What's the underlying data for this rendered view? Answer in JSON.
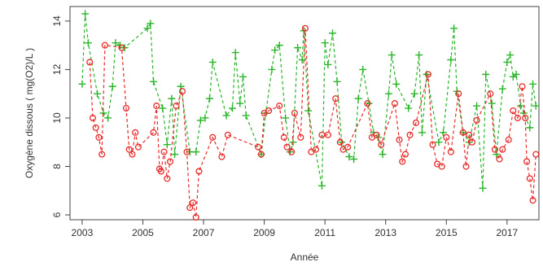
{
  "chart_data": {
    "type": "scatter",
    "title": "",
    "xlabel": "Année",
    "ylabel": "Oxygène dissous ( mg(O2)/L )",
    "xlim": [
      2002.6,
      2018.05
    ],
    "ylim": [
      5.8,
      14.6
    ],
    "x_ticks": [
      2003,
      2005,
      2007,
      2009,
      2011,
      2013,
      2015,
      2017
    ],
    "y_ticks": [
      6,
      8,
      10,
      12,
      14
    ],
    "grid": false,
    "legend": "none",
    "series": [
      {
        "color": "#2ab52a",
        "marker": "plus",
        "line": "dashed",
        "points": [
          [
            2003.0,
            11.4
          ],
          [
            2003.1,
            14.3
          ],
          [
            2003.2,
            13.1
          ],
          [
            2003.5,
            11.0
          ],
          [
            2003.7,
            10.2
          ],
          [
            2003.85,
            10.0
          ],
          [
            2004.0,
            11.3
          ],
          [
            2004.1,
            13.1
          ],
          [
            2004.25,
            13.0
          ],
          [
            2004.4,
            12.9
          ],
          [
            2005.15,
            13.7
          ],
          [
            2005.25,
            13.9
          ],
          [
            2005.35,
            11.5
          ],
          [
            2005.65,
            10.4
          ],
          [
            2005.8,
            8.9
          ],
          [
            2005.95,
            10.8
          ],
          [
            2006.05,
            8.5
          ],
          [
            2006.25,
            11.3
          ],
          [
            2006.55,
            8.6
          ],
          [
            2006.75,
            8.6
          ],
          [
            2006.9,
            9.9
          ],
          [
            2007.05,
            10.0
          ],
          [
            2007.2,
            10.8
          ],
          [
            2007.3,
            12.3
          ],
          [
            2007.75,
            10.1
          ],
          [
            2007.95,
            10.4
          ],
          [
            2008.05,
            12.7
          ],
          [
            2008.2,
            10.6
          ],
          [
            2008.3,
            11.7
          ],
          [
            2008.4,
            10.1
          ],
          [
            2008.9,
            8.5
          ],
          [
            2009.05,
            10.2
          ],
          [
            2009.25,
            12.0
          ],
          [
            2009.35,
            12.8
          ],
          [
            2009.5,
            13.0
          ],
          [
            2009.7,
            10.0
          ],
          [
            2009.85,
            8.6
          ],
          [
            2009.95,
            9.0
          ],
          [
            2010.1,
            12.9
          ],
          [
            2010.25,
            12.4
          ],
          [
            2010.3,
            13.6
          ],
          [
            2010.45,
            10.3
          ],
          [
            2010.9,
            7.2
          ],
          [
            2011.0,
            13.1
          ],
          [
            2011.1,
            12.2
          ],
          [
            2011.25,
            13.5
          ],
          [
            2011.4,
            11.5
          ],
          [
            2011.55,
            9.0
          ],
          [
            2011.8,
            8.4
          ],
          [
            2011.95,
            8.3
          ],
          [
            2012.1,
            10.8
          ],
          [
            2012.25,
            12.0
          ],
          [
            2012.45,
            10.6
          ],
          [
            2012.6,
            9.4
          ],
          [
            2012.75,
            9.2
          ],
          [
            2012.9,
            8.5
          ],
          [
            2013.1,
            11.0
          ],
          [
            2013.2,
            12.6
          ],
          [
            2013.35,
            11.4
          ],
          [
            2013.75,
            10.4
          ],
          [
            2013.95,
            11.0
          ],
          [
            2014.1,
            12.6
          ],
          [
            2014.2,
            9.4
          ],
          [
            2014.35,
            11.8
          ],
          [
            2014.75,
            9.0
          ],
          [
            2014.9,
            9.4
          ],
          [
            2015.15,
            12.4
          ],
          [
            2015.25,
            13.7
          ],
          [
            2015.35,
            11.1
          ],
          [
            2015.55,
            9.4
          ],
          [
            2015.75,
            9.0
          ],
          [
            2016.0,
            10.5
          ],
          [
            2016.2,
            7.1
          ],
          [
            2016.3,
            11.8
          ],
          [
            2016.5,
            10.6
          ],
          [
            2016.65,
            8.5
          ],
          [
            2016.85,
            11.2
          ],
          [
            2017.0,
            12.3
          ],
          [
            2017.1,
            12.6
          ],
          [
            2017.2,
            11.7
          ],
          [
            2017.3,
            11.8
          ],
          [
            2017.45,
            10.5
          ],
          [
            2017.55,
            10.2
          ],
          [
            2017.75,
            9.6
          ],
          [
            2017.85,
            11.4
          ],
          [
            2017.95,
            10.5
          ]
        ]
      },
      {
        "color": "#e82a2a",
        "marker": "circle",
        "line": "dashed",
        "points": [
          [
            2003.25,
            12.3
          ],
          [
            2003.35,
            10.0
          ],
          [
            2003.45,
            9.6
          ],
          [
            2003.55,
            9.2
          ],
          [
            2003.65,
            8.5
          ],
          [
            2003.75,
            13.0
          ],
          [
            2004.3,
            12.9
          ],
          [
            2004.45,
            10.4
          ],
          [
            2004.55,
            8.7
          ],
          [
            2004.65,
            8.5
          ],
          [
            2004.75,
            9.4
          ],
          [
            2004.85,
            8.8
          ],
          [
            2005.35,
            9.4
          ],
          [
            2005.45,
            10.5
          ],
          [
            2005.55,
            7.9
          ],
          [
            2005.6,
            7.8
          ],
          [
            2005.7,
            8.6
          ],
          [
            2005.8,
            7.5
          ],
          [
            2005.9,
            8.2
          ],
          [
            2006.1,
            10.5
          ],
          [
            2006.3,
            11.1
          ],
          [
            2006.45,
            8.6
          ],
          [
            2006.55,
            6.3
          ],
          [
            2006.65,
            6.5
          ],
          [
            2006.75,
            5.9
          ],
          [
            2006.85,
            7.8
          ],
          [
            2007.3,
            9.2
          ],
          [
            2007.6,
            8.4
          ],
          [
            2007.8,
            9.3
          ],
          [
            2008.8,
            8.8
          ],
          [
            2008.9,
            8.5
          ],
          [
            2009.0,
            10.2
          ],
          [
            2009.15,
            10.3
          ],
          [
            2009.5,
            10.5
          ],
          [
            2009.65,
            9.2
          ],
          [
            2009.75,
            8.8
          ],
          [
            2009.9,
            8.6
          ],
          [
            2010.0,
            10.2
          ],
          [
            2010.2,
            9.2
          ],
          [
            2010.35,
            13.7
          ],
          [
            2010.55,
            8.6
          ],
          [
            2010.7,
            8.7
          ],
          [
            2010.9,
            9.3
          ],
          [
            2011.1,
            9.3
          ],
          [
            2011.35,
            10.8
          ],
          [
            2011.5,
            9.0
          ],
          [
            2011.6,
            8.7
          ],
          [
            2011.75,
            8.8
          ],
          [
            2012.4,
            10.6
          ],
          [
            2012.55,
            9.2
          ],
          [
            2012.7,
            9.3
          ],
          [
            2012.85,
            8.9
          ],
          [
            2013.3,
            10.6
          ],
          [
            2013.45,
            9.1
          ],
          [
            2013.55,
            8.2
          ],
          [
            2013.65,
            8.5
          ],
          [
            2013.8,
            9.3
          ],
          [
            2014.0,
            9.8
          ],
          [
            2014.4,
            11.8
          ],
          [
            2014.55,
            8.9
          ],
          [
            2014.7,
            8.1
          ],
          [
            2014.85,
            8.0
          ],
          [
            2015.0,
            9.2
          ],
          [
            2015.15,
            8.6
          ],
          [
            2015.4,
            11.0
          ],
          [
            2015.55,
            9.4
          ],
          [
            2015.65,
            8.0
          ],
          [
            2015.75,
            9.3
          ],
          [
            2015.85,
            9.0
          ],
          [
            2016.0,
            9.9
          ],
          [
            2016.45,
            11.0
          ],
          [
            2016.6,
            8.7
          ],
          [
            2016.75,
            8.3
          ],
          [
            2016.85,
            8.7
          ],
          [
            2017.05,
            9.1
          ],
          [
            2017.2,
            10.3
          ],
          [
            2017.35,
            10.0
          ],
          [
            2017.5,
            11.3
          ],
          [
            2017.6,
            10.0
          ],
          [
            2017.65,
            8.2
          ],
          [
            2017.75,
            7.5
          ],
          [
            2017.85,
            6.6
          ],
          [
            2017.95,
            8.5
          ]
        ]
      }
    ]
  }
}
